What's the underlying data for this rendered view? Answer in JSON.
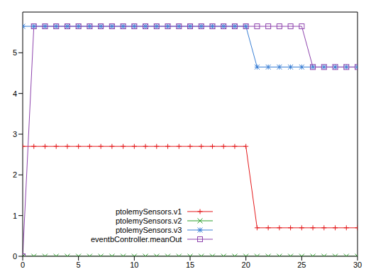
{
  "chart_data": {
    "type": "line",
    "x": [
      0,
      1,
      2,
      3,
      4,
      5,
      6,
      7,
      8,
      9,
      10,
      11,
      12,
      13,
      14,
      15,
      16,
      17,
      18,
      19,
      20,
      21,
      22,
      23,
      24,
      25,
      26,
      27,
      28,
      29,
      30
    ],
    "series": [
      {
        "name": "ptolemySensors.v1",
        "color": "#e41a1c",
        "marker": "plus",
        "values": [
          2.7,
          2.7,
          2.7,
          2.7,
          2.7,
          2.7,
          2.7,
          2.7,
          2.7,
          2.7,
          2.7,
          2.7,
          2.7,
          2.7,
          2.7,
          2.7,
          2.7,
          2.7,
          2.7,
          2.7,
          2.7,
          0.7,
          0.7,
          0.7,
          0.7,
          0.7,
          0.7,
          0.7,
          0.7,
          0.7,
          0.7
        ]
      },
      {
        "name": "ptolemySensors.v2",
        "color": "#2ca02c",
        "marker": "cross",
        "values": [
          0,
          0,
          0,
          0,
          0,
          0,
          0,
          0,
          0,
          0,
          0,
          0,
          0,
          0,
          0,
          0,
          0,
          0,
          0,
          0,
          0,
          0,
          0,
          0,
          0,
          0,
          0,
          0,
          0,
          0,
          0
        ]
      },
      {
        "name": "ptolemySensors.v3",
        "color": "#3a7fd5",
        "marker": "star",
        "values": [
          5.65,
          5.65,
          5.65,
          5.65,
          5.65,
          5.65,
          5.65,
          5.65,
          5.65,
          5.65,
          5.65,
          5.65,
          5.65,
          5.65,
          5.65,
          5.65,
          5.65,
          5.65,
          5.65,
          5.65,
          5.65,
          4.65,
          4.65,
          4.65,
          4.65,
          4.65,
          4.65,
          4.65,
          4.65,
          4.65,
          4.65
        ]
      },
      {
        "name": "eventbController.meanOut",
        "color": "#8e44ad",
        "marker": "square",
        "values": [
          0,
          5.65,
          5.65,
          5.65,
          5.65,
          5.65,
          5.65,
          5.65,
          5.65,
          5.65,
          5.65,
          5.65,
          5.65,
          5.65,
          5.65,
          5.65,
          5.65,
          5.65,
          5.65,
          5.65,
          5.65,
          5.65,
          5.65,
          5.65,
          5.65,
          5.65,
          4.65,
          4.65,
          4.65,
          4.65,
          4.65
        ]
      }
    ],
    "xlim": [
      0,
      30
    ],
    "xticks": [
      0,
      5,
      10,
      15,
      20,
      25,
      30
    ],
    "ylim": [
      0,
      6
    ],
    "yticks": [
      0,
      1,
      2,
      3,
      4,
      5
    ],
    "legend": "bottom"
  }
}
